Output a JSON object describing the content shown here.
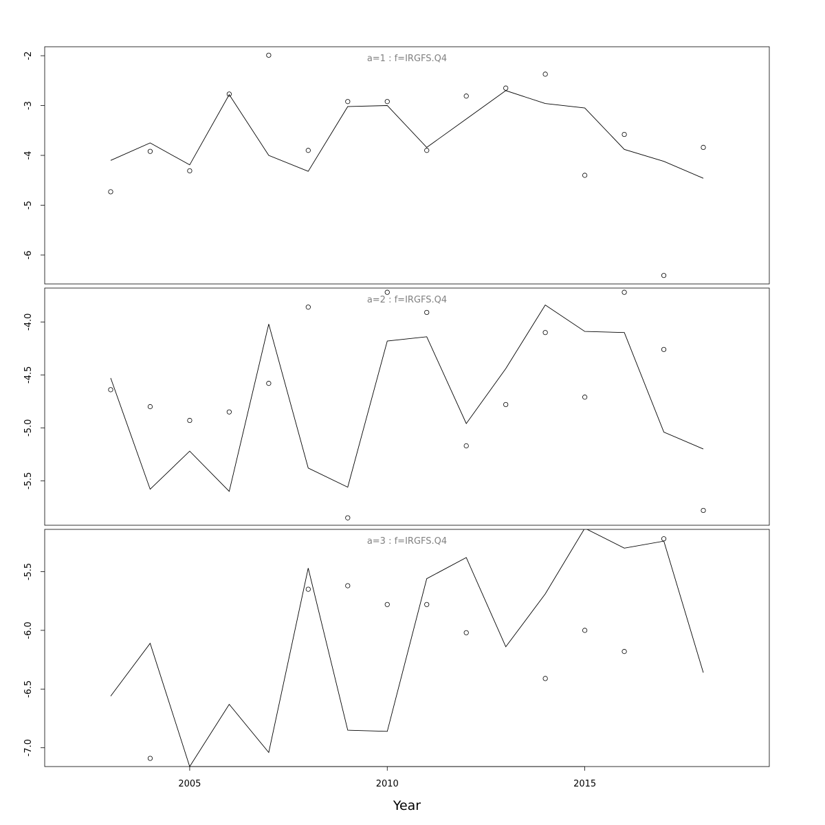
{
  "chart_data": {
    "type": "line",
    "xlabel": "Year",
    "xlim": [
      2001.33,
      2019.67
    ],
    "x_ticks": [
      2005,
      2010,
      2015
    ],
    "x": [
      2003,
      2004,
      2005,
      2006,
      2007,
      2008,
      2009,
      2010,
      2011,
      2012,
      2013,
      2014,
      2015,
      2016,
      2017,
      2018
    ],
    "panels": [
      {
        "title": "a=1  :  f=IRGFS.Q4",
        "ylim": [
          -6.58,
          -1.82
        ],
        "y_ticks": [
          -6,
          -5,
          -4,
          -3,
          -2
        ],
        "y_tick_labels": [
          "-6",
          "-5",
          "-4",
          "-3",
          "-2"
        ],
        "series": [
          {
            "kind": "points",
            "values": [
              -4.73,
              -3.92,
              -4.31,
              -2.77,
              -1.99,
              -3.9,
              -2.92,
              -2.92,
              -3.9,
              -2.81,
              -2.65,
              -2.37,
              -4.4,
              -3.58,
              -6.41,
              -3.84
            ]
          },
          {
            "kind": "line",
            "values": [
              -4.1,
              -3.75,
              -4.19,
              -2.78,
              -4.0,
              -4.32,
              -3.02,
              -3.0,
              -3.84,
              -3.27,
              -2.7,
              -2.96,
              -3.05,
              -3.88,
              -4.12,
              -4.46
            ]
          }
        ]
      },
      {
        "title": "a=2  :  f=IRGFS.Q4",
        "ylim": [
          -5.92,
          -3.68
        ],
        "y_ticks": [
          -5.5,
          -5.0,
          -4.5,
          -4.0
        ],
        "y_tick_labels": [
          "-5.5",
          "-5.0",
          "-4.5",
          "-4.0"
        ],
        "series": [
          {
            "kind": "points",
            "values": [
              -4.64,
              -4.8,
              -4.93,
              -4.85,
              -4.58,
              -3.86,
              -5.85,
              -3.72,
              -3.91,
              -5.17,
              -4.78,
              -4.1,
              -4.71,
              -3.72,
              -4.26,
              -5.78
            ]
          },
          {
            "kind": "line",
            "values": [
              -4.53,
              -5.58,
              -5.22,
              -5.6,
              -4.02,
              -5.38,
              -5.56,
              -4.18,
              -4.14,
              -4.96,
              -4.44,
              -3.84,
              -4.09,
              -4.1,
              -5.04,
              -5.2
            ]
          }
        ]
      },
      {
        "title": "a=3  :  f=IRGFS.Q4",
        "ylim": [
          -7.16,
          -5.14
        ],
        "y_ticks": [
          -7.0,
          -6.5,
          -6.0,
          -5.5
        ],
        "y_tick_labels": [
          "-7.0",
          "-6.5",
          "-6.0",
          "-5.5"
        ],
        "series": [
          {
            "kind": "points",
            "values": [
              null,
              -7.09,
              null,
              null,
              null,
              -5.65,
              -5.62,
              -5.78,
              -5.78,
              -6.02,
              null,
              -6.41,
              -6.0,
              -6.18,
              -5.22,
              null
            ]
          },
          {
            "kind": "line",
            "values": [
              -6.56,
              -6.11,
              -7.16,
              -6.63,
              -7.04,
              -5.47,
              -6.85,
              -6.86,
              -5.56,
              -5.38,
              -6.14,
              -5.69,
              -5.13,
              -5.3,
              -5.24,
              -6.36
            ]
          }
        ]
      }
    ]
  }
}
